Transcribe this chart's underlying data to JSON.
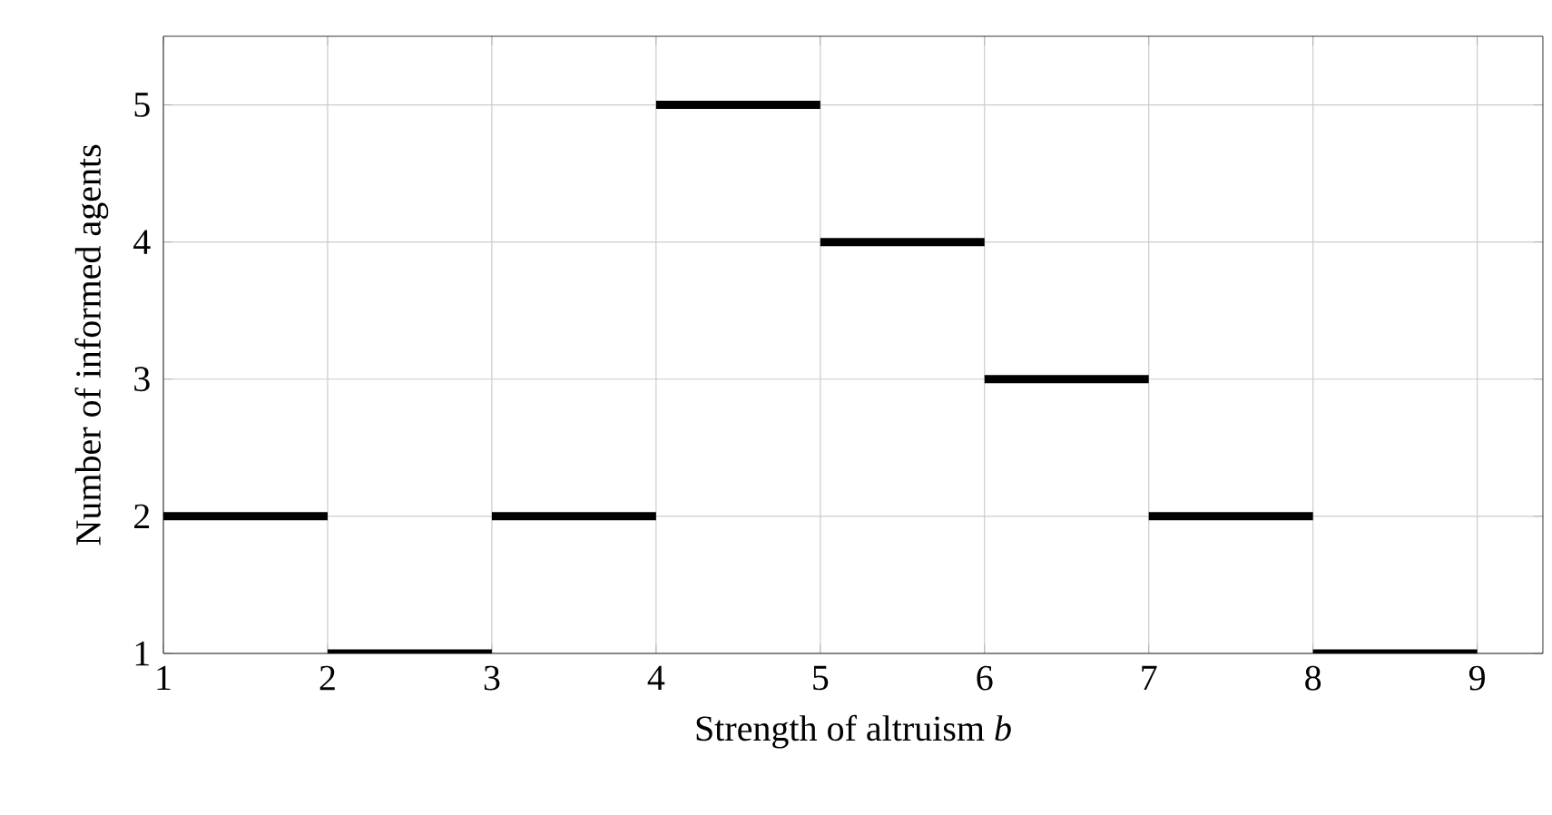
{
  "chart_data": {
    "type": "step",
    "xlabel": "Strength of altruism *b*",
    "ylabel": "Number of informed agents",
    "x": [
      1,
      2,
      3,
      4,
      5,
      6,
      7,
      8,
      9
    ],
    "series": [
      {
        "color": "#000000",
        "values": [
          2,
          1,
          2,
          5,
          4,
          3,
          2,
          1,
          1
        ]
      }
    ],
    "xlim": [
      1,
      9.4
    ],
    "ylim": [
      1,
      5.5
    ],
    "xticks": [
      1,
      2,
      3,
      4,
      5,
      6,
      7,
      8,
      9
    ],
    "yticks": [
      1,
      2,
      3,
      4,
      5
    ],
    "grid": true,
    "marker": "none",
    "line_style": "solid"
  }
}
